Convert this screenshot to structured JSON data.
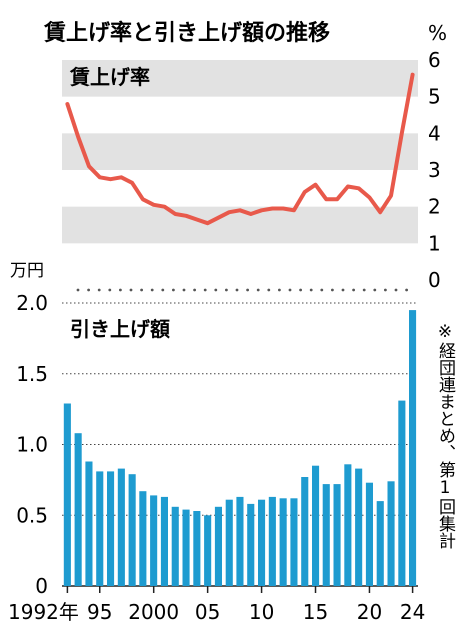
{
  "chart_data": [
    {
      "type": "line",
      "title": "賃上げ率と引き上げ額の推移",
      "panel_label": "賃上げ率",
      "unit": "%",
      "ylim": [
        0,
        6
      ],
      "yticks": [
        "0",
        "1",
        "2",
        "3",
        "4",
        "5",
        "6"
      ],
      "color": "#e8594b",
      "x": [
        1992,
        1993,
        1994,
        1995,
        1996,
        1997,
        1998,
        1999,
        2000,
        2001,
        2002,
        2003,
        2004,
        2005,
        2006,
        2007,
        2008,
        2009,
        2010,
        2011,
        2012,
        2013,
        2014,
        2015,
        2016,
        2017,
        2018,
        2019,
        2020,
        2021,
        2022,
        2023,
        2024
      ],
      "values": [
        4.8,
        3.9,
        3.1,
        2.8,
        2.75,
        2.8,
        2.65,
        2.2,
        2.05,
        2.0,
        1.8,
        1.75,
        1.65,
        1.55,
        1.7,
        1.85,
        1.9,
        1.8,
        1.9,
        1.95,
        1.95,
        1.9,
        2.4,
        2.6,
        2.2,
        2.2,
        2.55,
        2.5,
        2.25,
        1.85,
        2.3,
        4.0,
        5.6
      ]
    },
    {
      "type": "bar",
      "panel_label": "引き上げ額",
      "unit": "万円",
      "ylim": [
        0,
        2.0
      ],
      "yticks": [
        "0",
        "0.5",
        "1.0",
        "1.5",
        "2.0"
      ],
      "color": "#1e9bd0",
      "categories": [
        1992,
        1993,
        1994,
        1995,
        1996,
        1997,
        1998,
        1999,
        2000,
        2001,
        2002,
        2003,
        2004,
        2005,
        2006,
        2007,
        2008,
        2009,
        2010,
        2011,
        2012,
        2013,
        2014,
        2015,
        2016,
        2017,
        2018,
        2019,
        2020,
        2021,
        2022,
        2023,
        2024
      ],
      "values": [
        1.29,
        1.08,
        0.88,
        0.81,
        0.81,
        0.83,
        0.79,
        0.67,
        0.64,
        0.63,
        0.56,
        0.54,
        0.53,
        0.5,
        0.56,
        0.61,
        0.63,
        0.58,
        0.61,
        0.63,
        0.62,
        0.62,
        0.77,
        0.85,
        0.72,
        0.72,
        0.86,
        0.83,
        0.73,
        0.6,
        0.74,
        1.31,
        1.95
      ],
      "xtick_labels": [
        "1992年",
        "95",
        "2000",
        "05",
        "10",
        "15",
        "20",
        "24"
      ],
      "xtick_years": [
        1992,
        1995,
        2000,
        2005,
        2010,
        2015,
        2020,
        2024
      ],
      "note": "※経団連まとめ、第1回集計"
    }
  ]
}
